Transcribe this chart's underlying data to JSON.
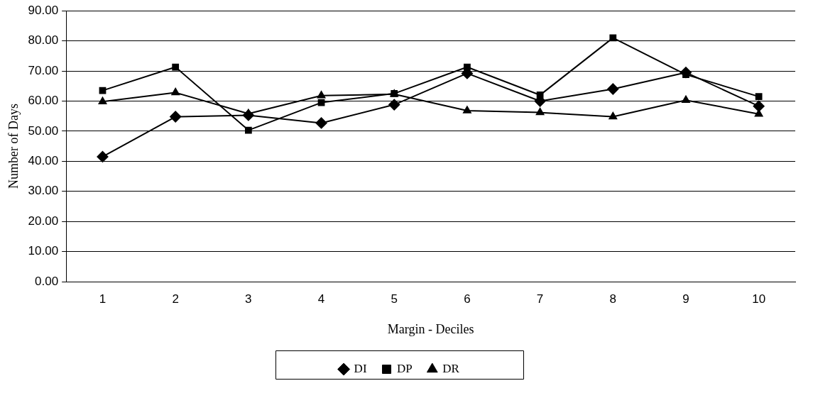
{
  "chart_data": {
    "type": "line",
    "xlabel": "Margin - Deciles",
    "ylabel": "Number of Days",
    "categories": [
      "1",
      "2",
      "3",
      "4",
      "5",
      "6",
      "7",
      "8",
      "9",
      "10"
    ],
    "series": [
      {
        "name": "DI",
        "color": "#000000",
        "marker": "diamond",
        "values": [
          41.5,
          54.8,
          55.3,
          52.7,
          58.8,
          69.2,
          60.0,
          64.0,
          69.5,
          58.3
        ]
      },
      {
        "name": "DP",
        "color": "#000000",
        "marker": "square",
        "values": [
          63.5,
          71.3,
          50.3,
          59.5,
          62.5,
          71.3,
          62.0,
          81.0,
          68.8,
          61.5
        ]
      },
      {
        "name": "DR",
        "color": "#000000",
        "marker": "triangle",
        "values": [
          59.8,
          62.8,
          55.8,
          61.8,
          62.3,
          56.8,
          56.2,
          54.8,
          60.3,
          55.7
        ]
      }
    ],
    "ylim": [
      0,
      90
    ],
    "yticks": [
      {
        "value": 0,
        "label": "0.00"
      },
      {
        "value": 10,
        "label": "10.00"
      },
      {
        "value": 20,
        "label": "20.00"
      },
      {
        "value": 30,
        "label": "30.00"
      },
      {
        "value": 40,
        "label": "40.00"
      },
      {
        "value": 50,
        "label": "50.00"
      },
      {
        "value": 60,
        "label": "60.00"
      },
      {
        "value": 70,
        "label": "70.00"
      },
      {
        "value": 80,
        "label": "80.00"
      },
      {
        "value": 90,
        "label": "90.00"
      }
    ],
    "grid": "y",
    "legend": "bottom",
    "line_style": "solid"
  }
}
